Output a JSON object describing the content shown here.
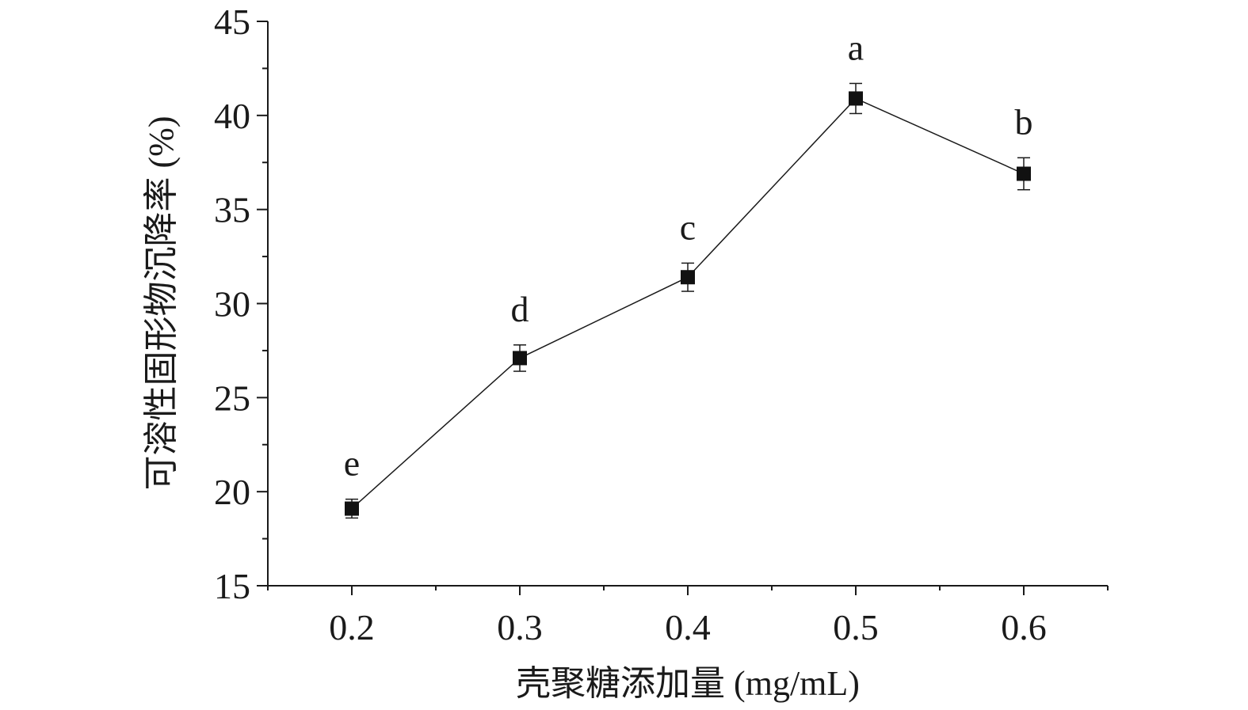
{
  "chart_data": {
    "type": "line",
    "xlabel": "壳聚糖添加量 (mg/mL)",
    "ylabel": "可溶性固形物沉降率 (%)",
    "xlim": [
      0.15,
      0.65
    ],
    "ylim": [
      15,
      45
    ],
    "x_ticks": [
      0.2,
      0.3,
      0.4,
      0.5,
      0.6
    ],
    "x_tick_labels": [
      "0.2",
      "0.3",
      "0.4",
      "0.5",
      "0.6"
    ],
    "y_ticks": [
      15,
      20,
      25,
      30,
      35,
      40,
      45
    ],
    "y_tick_labels": [
      "15",
      "20",
      "25",
      "30",
      "35",
      "40",
      "45"
    ],
    "grid": false,
    "series": [
      {
        "x": [
          0.2,
          0.3,
          0.4,
          0.5,
          0.6
        ],
        "y": [
          19.1,
          27.1,
          31.4,
          40.9,
          36.9
        ],
        "error": [
          0.5,
          0.7,
          0.75,
          0.8,
          0.85
        ],
        "marker": "square",
        "color": "#111111"
      }
    ],
    "annotations": [
      "e",
      "d",
      "c",
      "a",
      "b"
    ]
  }
}
